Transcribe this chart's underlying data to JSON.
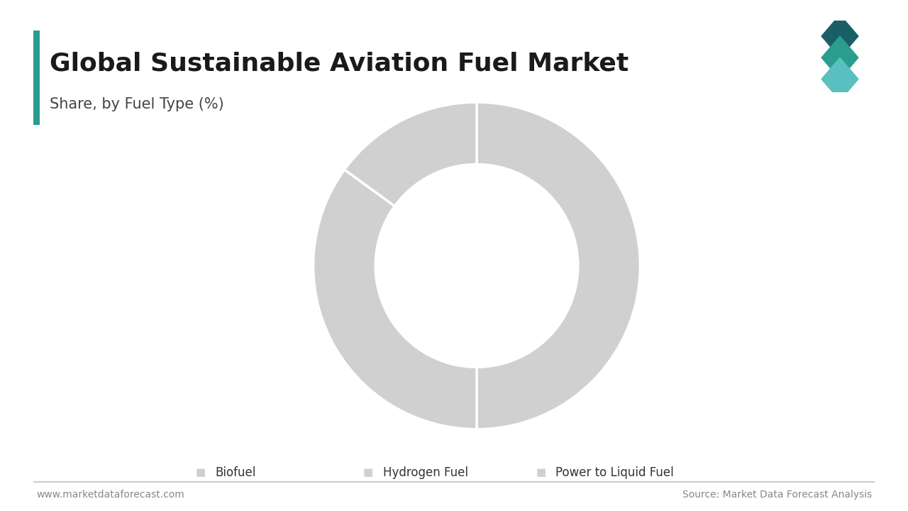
{
  "title": "Global Sustainable Aviation Fuel Market",
  "subtitle": "Share, by Fuel Type (%)",
  "labels": [
    "Biofuel",
    "Hydrogen Fuel",
    "Power to Liquid Fuel"
  ],
  "values": [
    50,
    35,
    15
  ],
  "segment_color": "#d0d0d0",
  "bg_color": "#ffffff",
  "wedge_edge_color": "#ffffff",
  "legend_marker_color": "#d0d0d0",
  "title_color": "#1a1a1a",
  "subtitle_color": "#444444",
  "footer_left": "www.marketdataforecast.com",
  "footer_right": "Source: Market Data Forecast Analysis",
  "footer_color": "#888888",
  "left_bar_color": "#2a9d8f",
  "wedge_linewidth": 2.5,
  "donut_width": 0.38,
  "start_angle": 90
}
